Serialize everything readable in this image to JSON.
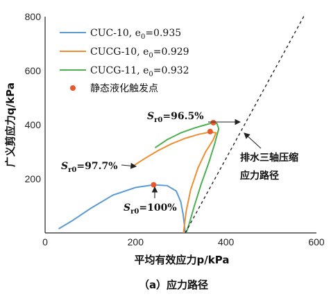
{
  "chart_data": {
    "type": "line",
    "caption": "（a）应力路径",
    "xlabel": "平均有效应力p/kPa",
    "ylabel": "广义剪应力q/kPa",
    "xlim": [
      0,
      600
    ],
    "ylim": [
      0,
      800
    ],
    "xticks": [
      0,
      200,
      400,
      600
    ],
    "yticks": [
      200,
      400,
      600,
      800
    ],
    "grid": false,
    "legend_position": "top-left",
    "series": [
      {
        "name": "CUC-10, e0=0.935",
        "label": "CUC-10",
        "e0": "0.935",
        "color": "#5b9bd5",
        "points": [
          [
            30,
            15
          ],
          [
            60,
            45
          ],
          [
            100,
            90
          ],
          [
            150,
            140
          ],
          [
            200,
            168
          ],
          [
            240,
            178
          ],
          [
            270,
            175
          ],
          [
            290,
            155
          ],
          [
            300,
            115
          ],
          [
            305,
            70
          ],
          [
            308,
            30
          ],
          [
            310,
            0
          ]
        ]
      },
      {
        "name": "CUCG-10, e0=0.929",
        "label": "CUCG-10",
        "e0": "0.929",
        "color": "#f28c30",
        "points": [
          [
            195,
            248
          ],
          [
            220,
            275
          ],
          [
            250,
            305
          ],
          [
            280,
            330
          ],
          [
            310,
            350
          ],
          [
            340,
            365
          ],
          [
            365,
            373
          ],
          [
            378,
            370
          ],
          [
            372,
            345
          ],
          [
            355,
            300
          ],
          [
            338,
            240
          ],
          [
            322,
            160
          ],
          [
            312,
            80
          ],
          [
            306,
            0
          ]
        ]
      },
      {
        "name": "CUCG-11, e0=0.932",
        "label": "CUCG-11",
        "e0": "0.932",
        "color": "#4caf50",
        "points": [
          [
            243,
            315
          ],
          [
            270,
            345
          ],
          [
            300,
            370
          ],
          [
            330,
            388
          ],
          [
            355,
            400
          ],
          [
            370,
            407
          ],
          [
            380,
            405
          ],
          [
            384,
            385
          ],
          [
            375,
            330
          ],
          [
            362,
            260
          ],
          [
            345,
            180
          ],
          [
            330,
            100
          ],
          [
            318,
            30
          ],
          [
            312,
            0
          ]
        ]
      },
      {
        "name": "排水三轴压缩应力路径",
        "color": "#222222",
        "dashed": true,
        "points": [
          [
            310,
            0
          ],
          [
            575,
            810
          ]
        ]
      }
    ],
    "trigger_points": {
      "name": "静态液化触发点",
      "color": "#e8582b",
      "points": [
        [
          240,
          178
        ],
        [
          365,
          375
        ],
        [
          372,
          408
        ]
      ]
    },
    "annotations": [
      {
        "prefix": "S",
        "sub": "r0",
        "text": "=96.5%",
        "at": [
          295,
          440
        ]
      },
      {
        "prefix": "S",
        "sub": "r0",
        "text": "=97.7%",
        "at": [
          140,
          240
        ]
      },
      {
        "prefix": "S",
        "sub": "r0",
        "text": "=100%",
        "at": [
          225,
          100
        ]
      },
      {
        "text_lines": [
          "排水三轴压缩",
          "应力路径"
        ],
        "at": [
          445,
          345
        ]
      }
    ]
  },
  "legend": {
    "items": [
      {
        "label": "CUC-10, e",
        "sub": "0",
        "value": "=0.935"
      },
      {
        "label": "CUCG-10, e",
        "sub": "0",
        "value": "=0.929"
      },
      {
        "label": "CUCG-11, e",
        "sub": "0",
        "value": "=0.932"
      },
      {
        "label": "静态液化触发点"
      }
    ]
  }
}
